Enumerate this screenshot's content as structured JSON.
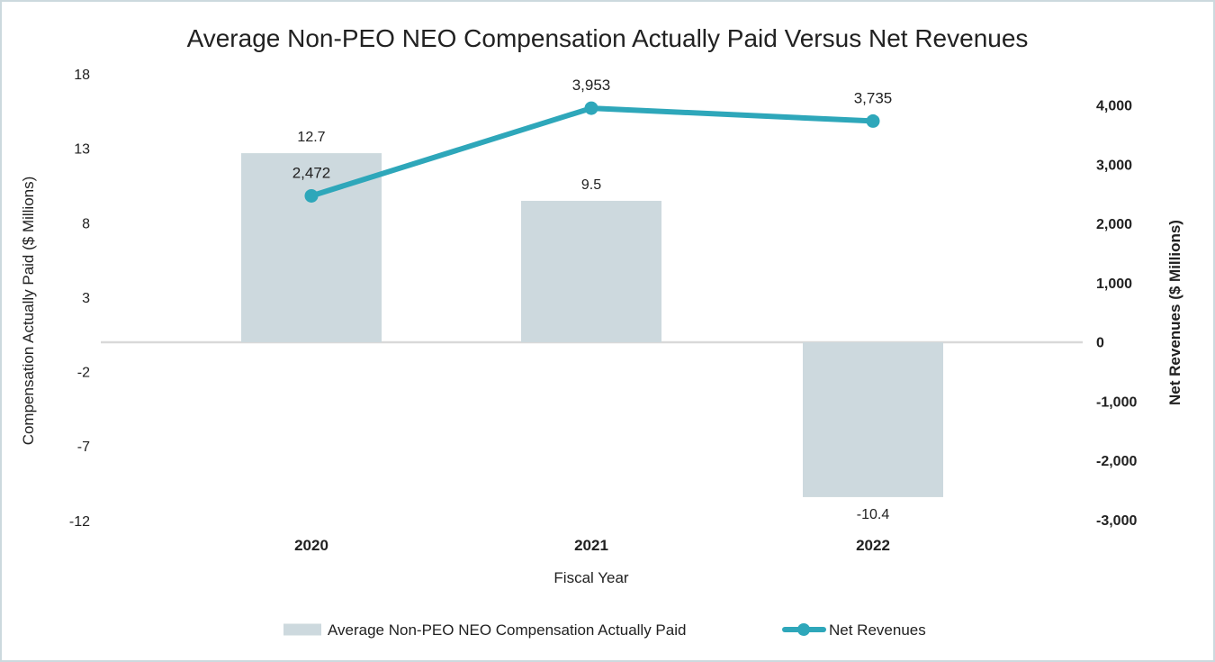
{
  "chart_data": {
    "type": "combo_bar_line",
    "title": "Average Non-PEO NEO Compensation Actually Paid Versus Net Revenues",
    "xlabel": "Fiscal Year",
    "y1label": "Compensation Actually Paid ($ Millions)",
    "y2label": "Net Revenues ($ Millions)",
    "categories": [
      "2020",
      "2021",
      "2022"
    ],
    "series": [
      {
        "name": "Average Non-PEO NEO Compensation Actually Paid",
        "type": "bar",
        "axis": "y1",
        "values": [
          12.7,
          9.5,
          -10.4
        ],
        "labels": [
          "12.7",
          "9.5",
          "-10.4"
        ],
        "color": "#cdd9de"
      },
      {
        "name": "Net Revenues",
        "type": "line",
        "axis": "y2",
        "values": [
          2472,
          3953,
          3735
        ],
        "labels": [
          "2,472",
          "3,953",
          "3,735"
        ],
        "color": "#2ea7ba"
      }
    ],
    "y1_axis": {
      "range": [
        -12,
        18
      ],
      "ticks": [
        18,
        13,
        8,
        3,
        -2,
        -7,
        -12
      ],
      "tick_labels": [
        "18",
        "13",
        "8",
        "3",
        "-2",
        "-7",
        "-12"
      ]
    },
    "y2_axis": {
      "range": [
        -3000,
        4000
      ],
      "ticks": [
        4000,
        3000,
        2000,
        1000,
        0,
        -1000,
        -2000,
        -3000
      ],
      "tick_labels": [
        "4,000",
        "3,000",
        "2,000",
        "1,000",
        "0",
        "-1,000",
        "-2,000",
        "-3,000"
      ]
    },
    "grid": "zero-line-only",
    "legend_position": "bottom",
    "colors": {
      "bar": "#cdd9de",
      "line": "#2ea7ba",
      "gridline": "#d9d9d9",
      "text": "#212121",
      "frame_border": "#ccd9de"
    }
  }
}
